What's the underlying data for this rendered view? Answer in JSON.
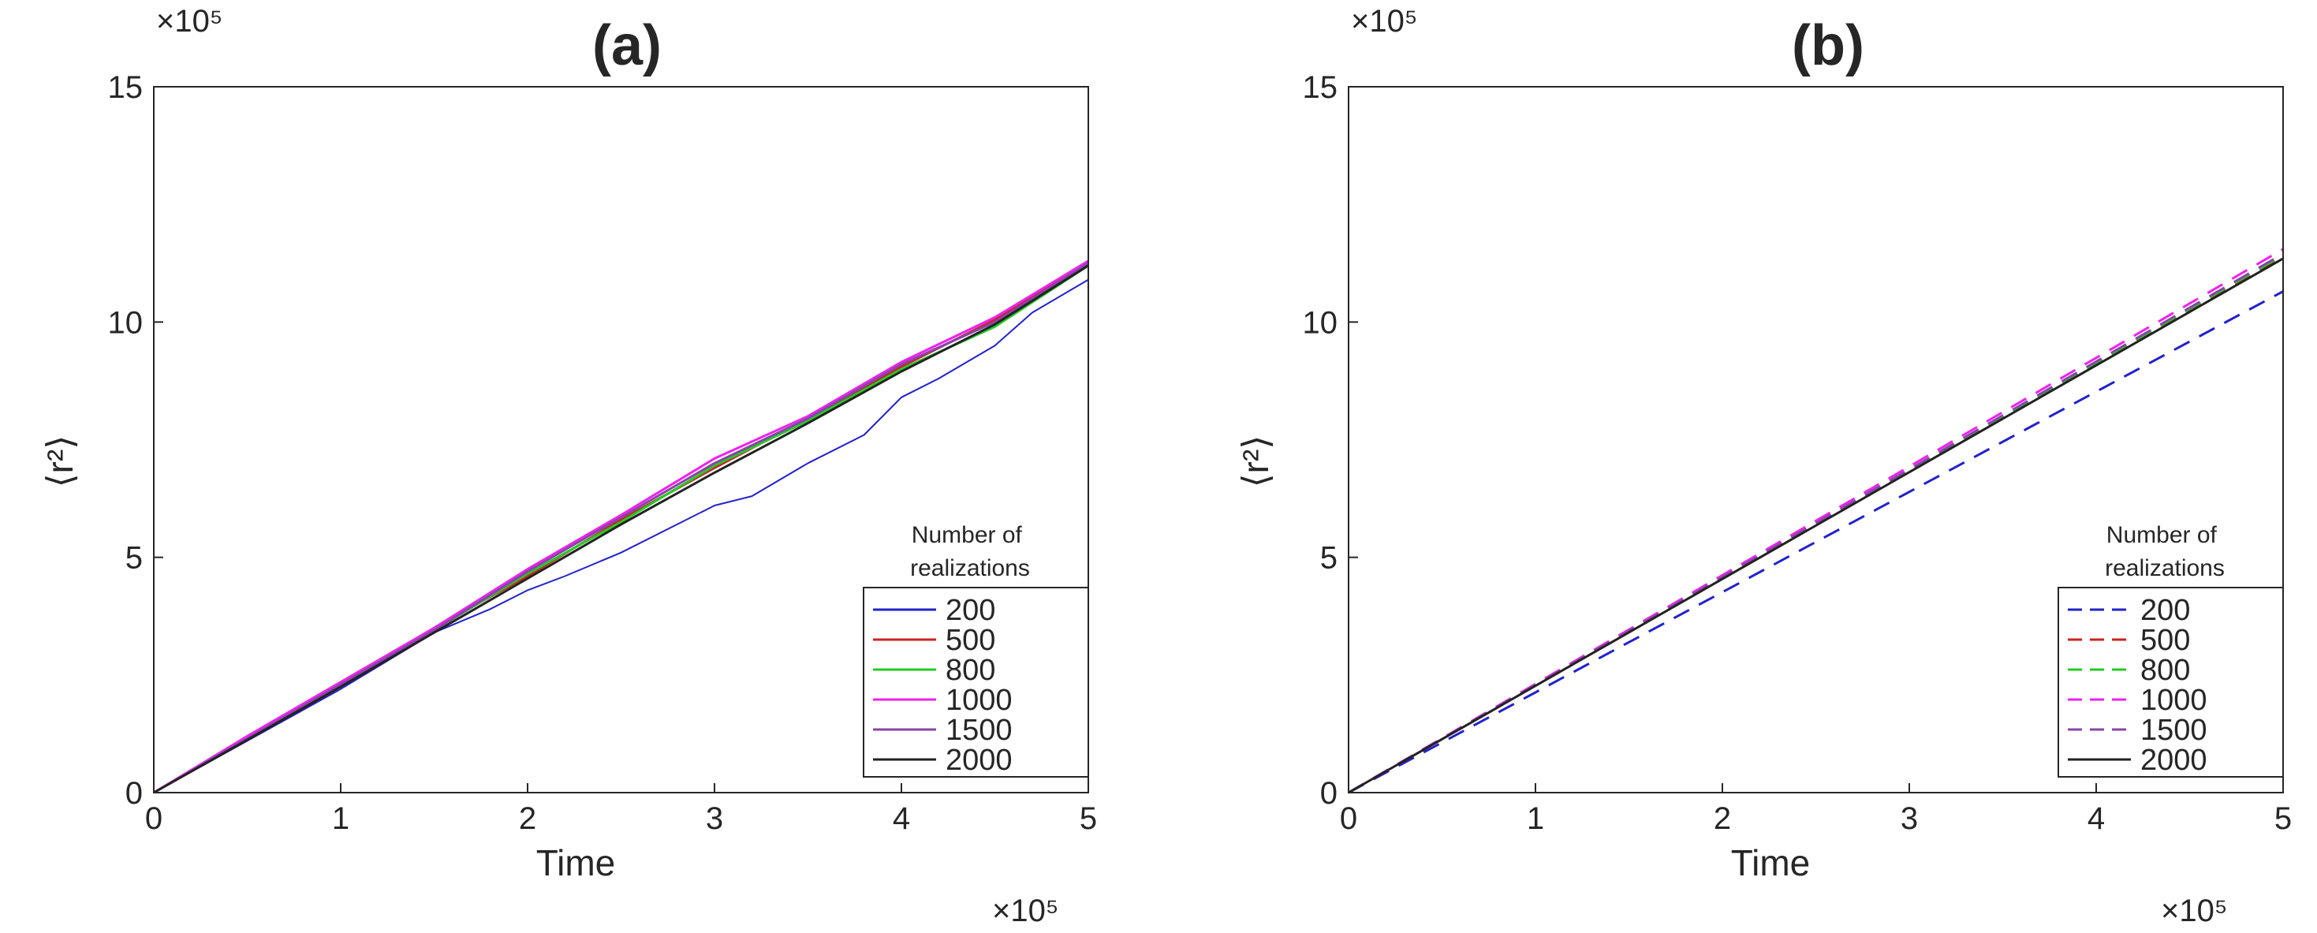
{
  "chart_data": [
    {
      "type": "line",
      "title": "(a)",
      "xlabel": "Time",
      "ylabel": "⟨r²⟩",
      "x_multiplier": "×10⁵",
      "y_multiplier": "×10⁵",
      "xlim": [
        0,
        5
      ],
      "ylim": [
        0,
        15
      ],
      "xticks": [
        "0",
        "1",
        "2",
        "3",
        "4",
        "5"
      ],
      "yticks": [
        "0",
        "5",
        "10",
        "15"
      ],
      "legend_title": "Number of realizations",
      "legend_position": "lower-right",
      "line_style": "solid",
      "series": [
        {
          "name": "200",
          "color": "#2222cc",
          "width": 2,
          "x": [
            0,
            0.5,
            1,
            1.5,
            1.8,
            2,
            2.2,
            2.5,
            2.8,
            3,
            3.2,
            3.5,
            3.8,
            4,
            4.2,
            4.5,
            4.7,
            5
          ],
          "y": [
            0,
            1.1,
            2.2,
            3.4,
            3.9,
            4.3,
            4.6,
            5.1,
            5.7,
            6.1,
            6.3,
            7.0,
            7.6,
            8.4,
            8.8,
            9.5,
            10.2,
            10.9
          ]
        },
        {
          "name": "500",
          "color": "#cc2222",
          "width": 3,
          "x": [
            0,
            0.5,
            1,
            1.5,
            2,
            2.5,
            3,
            3.5,
            4,
            4.5,
            5
          ],
          "y": [
            0,
            1.15,
            2.3,
            3.5,
            4.6,
            5.8,
            6.9,
            7.95,
            9.05,
            10.05,
            11.25
          ]
        },
        {
          "name": "800",
          "color": "#22cc22",
          "width": 3,
          "x": [
            0,
            0.5,
            1,
            1.5,
            2,
            2.5,
            3,
            3.5,
            4,
            4.5,
            5
          ],
          "y": [
            0,
            1.15,
            2.3,
            3.45,
            4.65,
            5.75,
            6.95,
            7.9,
            9.0,
            9.9,
            11.2
          ]
        },
        {
          "name": "1000",
          "color": "#ee22ee",
          "width": 3,
          "x": [
            0,
            0.5,
            1,
            1.5,
            2,
            2.5,
            3,
            3.5,
            4,
            4.5,
            5
          ],
          "y": [
            0,
            1.2,
            2.35,
            3.5,
            4.75,
            5.9,
            7.1,
            8.0,
            9.15,
            10.1,
            11.3
          ]
        },
        {
          "name": "1500",
          "color": "#8844aa",
          "width": 3,
          "x": [
            0,
            0.5,
            1,
            1.5,
            2,
            2.5,
            3,
            3.5,
            4,
            4.5,
            5
          ],
          "y": [
            0,
            1.15,
            2.3,
            3.45,
            4.7,
            5.85,
            7.0,
            7.95,
            9.1,
            10.0,
            11.25
          ]
        },
        {
          "name": "2000",
          "color": "#222222",
          "width": 3,
          "x": [
            0,
            0.5,
            1,
            1.5,
            2,
            2.5,
            3,
            3.5,
            4,
            4.5,
            5
          ],
          "y": [
            0,
            1.12,
            2.25,
            3.4,
            4.55,
            5.7,
            6.8,
            7.85,
            8.95,
            9.95,
            11.2
          ]
        }
      ]
    },
    {
      "type": "line",
      "title": "(b)",
      "xlabel": "Time",
      "ylabel": "⟨r²⟩",
      "x_multiplier": "×10⁵",
      "y_multiplier": "×10⁵",
      "xlim": [
        0,
        5
      ],
      "ylim": [
        0,
        15
      ],
      "xticks": [
        "0",
        "1",
        "2",
        "3",
        "4",
        "5"
      ],
      "yticks": [
        "0",
        "5",
        "10",
        "15"
      ],
      "legend_title": "Number of realizations",
      "legend_position": "lower-right",
      "line_style": "dashed",
      "series": [
        {
          "name": "200",
          "color": "#2222cc",
          "dashed": true,
          "x": [
            0,
            5
          ],
          "y": [
            0,
            10.65
          ]
        },
        {
          "name": "500",
          "color": "#cc2222",
          "dashed": true,
          "x": [
            0,
            5
          ],
          "y": [
            0,
            11.4
          ]
        },
        {
          "name": "800",
          "color": "#22cc22",
          "dashed": true,
          "x": [
            0,
            5
          ],
          "y": [
            0,
            11.42
          ]
        },
        {
          "name": "1000",
          "color": "#ee22ee",
          "dashed": true,
          "x": [
            0,
            5
          ],
          "y": [
            0,
            11.55
          ]
        },
        {
          "name": "1500",
          "color": "#8844aa",
          "dashed": true,
          "x": [
            0,
            5
          ],
          "y": [
            0,
            11.45
          ]
        },
        {
          "name": "2000",
          "color": "#222222",
          "dashed": false,
          "x": [
            0,
            5
          ],
          "y": [
            0,
            11.35
          ]
        }
      ]
    }
  ]
}
